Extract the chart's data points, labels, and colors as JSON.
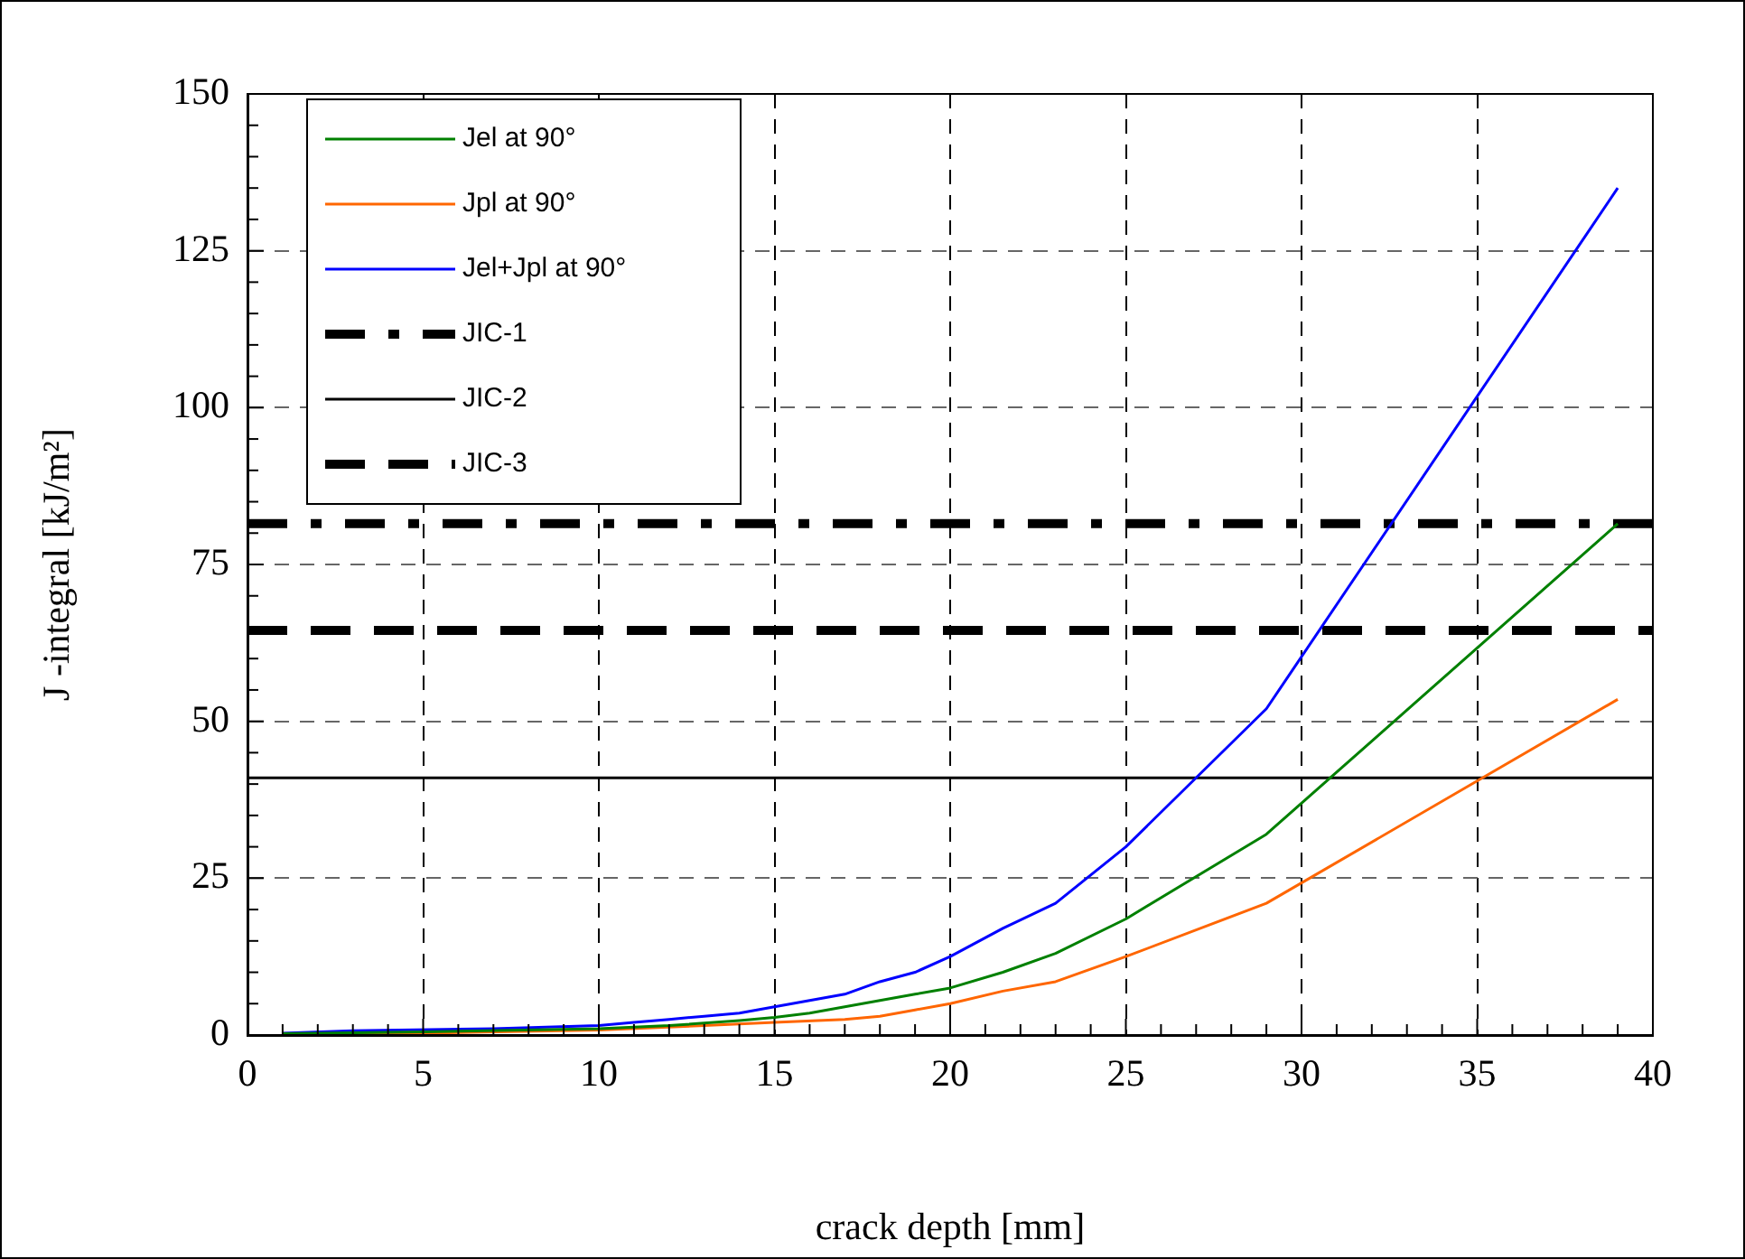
{
  "chart_data": {
    "type": "line",
    "xlabel": "crack depth [mm]",
    "ylabel": "J -integral [kJ/m²]",
    "xlim": [
      0,
      40
    ],
    "ylim": [
      0,
      150
    ],
    "xticks": [
      0,
      {
        "value": 1,
        "label": null
      },
      {
        "value": 2,
        "label": null
      },
      {
        "value": 3,
        "label": null
      },
      {
        "value": 4,
        "label": null
      },
      5,
      {
        "value": 6,
        "label": null
      },
      {
        "value": 7,
        "label": null
      },
      {
        "value": 8,
        "label": null
      },
      {
        "value": 9,
        "label": null
      },
      10,
      {
        "value": 11,
        "label": null
      },
      {
        "value": 12,
        "label": null
      },
      {
        "value": 13,
        "label": null
      },
      {
        "value": 14,
        "label": null
      },
      15,
      {
        "value": 16,
        "label": null
      },
      {
        "value": 17,
        "label": null
      },
      {
        "value": 18,
        "label": null
      },
      {
        "value": 19,
        "label": null
      },
      20,
      {
        "value": 21,
        "label": null
      },
      {
        "value": 22,
        "label": null
      },
      {
        "value": 23,
        "label": null
      },
      {
        "value": 24,
        "label": null
      },
      25,
      {
        "value": 26,
        "label": null
      },
      {
        "value": 27,
        "label": null
      },
      {
        "value": 28,
        "label": null
      },
      {
        "value": 29,
        "label": null
      },
      30,
      {
        "value": 31,
        "label": null
      },
      {
        "value": 32,
        "label": null
      },
      {
        "value": 33,
        "label": null
      },
      {
        "value": 34,
        "label": null
      },
      35,
      {
        "value": 36,
        "label": null
      },
      {
        "value": 37,
        "label": null
      },
      {
        "value": 38,
        "label": null
      },
      {
        "value": 39,
        "label": null
      },
      40
    ],
    "yticks": [
      0,
      {
        "value": 5,
        "label": null
      },
      {
        "value": 10,
        "label": null
      },
      {
        "value": 15,
        "label": null
      },
      {
        "value": 20,
        "label": null
      },
      25,
      {
        "value": 30,
        "label": null
      },
      {
        "value": 35,
        "label": null
      },
      {
        "value": 40,
        "label": null
      },
      {
        "value": 45,
        "label": null
      },
      50,
      {
        "value": 55,
        "label": null
      },
      {
        "value": 60,
        "label": null
      },
      {
        "value": 65,
        "label": null
      },
      {
        "value": 70,
        "label": null
      },
      75,
      {
        "value": 80,
        "label": null
      },
      {
        "value": 85,
        "label": null
      },
      {
        "value": 90,
        "label": null
      },
      {
        "value": 95,
        "label": null
      },
      100,
      {
        "value": 105,
        "label": null
      },
      {
        "value": 110,
        "label": null
      },
      {
        "value": 115,
        "label": null
      },
      {
        "value": 120,
        "label": null
      },
      125,
      {
        "value": 130,
        "label": null
      },
      {
        "value": 135,
        "label": null
      },
      {
        "value": 140,
        "label": null
      },
      {
        "value": 145,
        "label": null
      },
      150
    ],
    "grid": true,
    "legend": "top left",
    "marker": "none",
    "series": [
      {
        "name": "Jel at 90°",
        "color": "#008000",
        "line_style": "solid",
        "x": [
          1,
          5,
          10,
          12,
          14,
          15,
          16,
          17,
          18,
          19,
          20,
          21.5,
          23,
          25,
          29,
          39
        ],
        "values": [
          0.2,
          0.5,
          1,
          1.5,
          2.3,
          2.8,
          3.5,
          4.5,
          5.5,
          6.5,
          7.5,
          10,
          13,
          18.5,
          32,
          81.5
        ]
      },
      {
        "name": "Jpl at 90°",
        "color": "#ff6600",
        "line_style": "solid",
        "x": [
          1,
          5,
          10,
          13,
          15,
          17,
          18,
          19,
          20,
          21.5,
          23,
          25,
          29,
          39
        ],
        "values": [
          0,
          0.3,
          0.8,
          1.5,
          2,
          2.5,
          3,
          4,
          5,
          7,
          8.5,
          12.5,
          21,
          53.5
        ]
      },
      {
        "name": "Jel+Jpl at 90°",
        "color": "#0000ff",
        "line_style": "solid",
        "x": [
          1,
          3,
          7,
          10,
          11,
          12,
          13,
          14,
          15,
          16,
          17,
          18,
          19,
          20,
          21.5,
          23,
          25,
          29,
          39
        ],
        "values": [
          0.3,
          0.7,
          1,
          1.5,
          2,
          2.5,
          3,
          3.5,
          4.5,
          5.5,
          6.5,
          8.5,
          10,
          12.5,
          17,
          21,
          30,
          52,
          135
        ]
      },
      {
        "name": "JIC-1",
        "color": "#000000",
        "line_style": "dashdot",
        "x": [
          0,
          40
        ],
        "values": [
          81.5,
          81.5
        ]
      },
      {
        "name": "JIC-2",
        "color": "#000000",
        "line_style": "solid",
        "x": [
          0,
          40
        ],
        "values": [
          41,
          41
        ]
      },
      {
        "name": "JIC-3",
        "color": "#000000",
        "line_style": "dashed",
        "x": [
          0,
          40
        ],
        "values": [
          64.5,
          64.5
        ]
      }
    ]
  }
}
